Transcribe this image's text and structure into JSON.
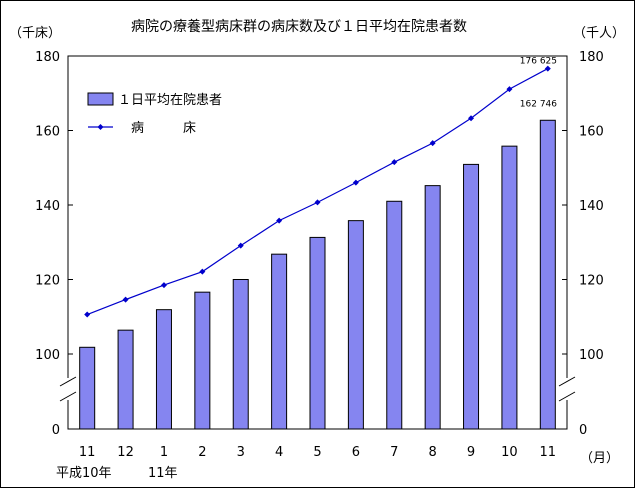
{
  "chart_data": {
    "type": "bar+line",
    "title": "病院の療養型病床群の病床数及び１日平均在院患者数",
    "y_left_unit": "（千床）",
    "y_right_unit": "（千人）",
    "x_unit": "（月）",
    "categories": [
      "11",
      "12",
      "1",
      "2",
      "3",
      "4",
      "5",
      "6",
      "7",
      "8",
      "9",
      "10",
      "11"
    ],
    "era_labels": [
      "平成10年",
      "11年"
    ],
    "y_ticks": [
      0,
      100,
      120,
      140,
      160,
      180
    ],
    "ylim": [
      0,
      180
    ],
    "axis_break": true,
    "legend_position": "top-left",
    "series": [
      {
        "name": "１日平均在院患者",
        "type": "bar",
        "color": "#8585f0",
        "values": [
          101.8,
          106.4,
          111.9,
          116.6,
          120.0,
          126.8,
          131.3,
          135.8,
          141.0,
          145.2,
          150.9,
          155.8,
          162.746
        ],
        "last_label": "162 746"
      },
      {
        "name": "病　　　床",
        "type": "line",
        "color": "#0000cc",
        "values": [
          110.6,
          114.6,
          118.5,
          122.1,
          129.1,
          135.8,
          140.7,
          146.0,
          151.5,
          156.6,
          163.3,
          171.1,
          176.625
        ],
        "last_label": "176 625"
      }
    ]
  }
}
